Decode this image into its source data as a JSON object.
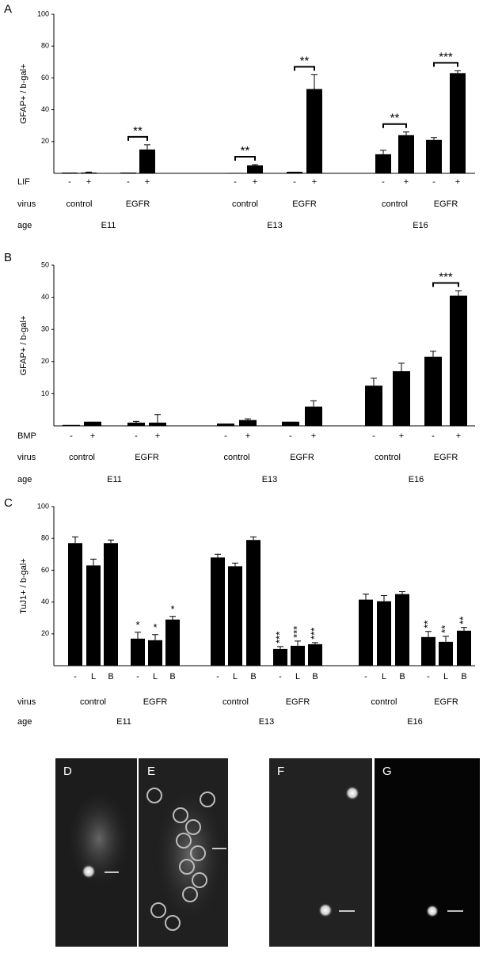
{
  "chart_data": [
    {
      "type": "bar",
      "panel": "A",
      "y_label": "GFAP+ / b-gal+",
      "ylim": [
        0,
        100
      ],
      "yticks": [
        20,
        40,
        60,
        80,
        100
      ],
      "color": "#000000",
      "treatment_label": "LIF",
      "virus_label": "virus",
      "age_label": "age",
      "categories": [
        "-",
        "+",
        "-",
        "+",
        "-",
        "+",
        "-",
        "+",
        "-",
        "+",
        "-",
        "+"
      ],
      "values": [
        0.5,
        0.5,
        0.5,
        15,
        0.3,
        5,
        1,
        53,
        12,
        24,
        21,
        63
      ],
      "errors": [
        0,
        0.3,
        0,
        3,
        0,
        0.5,
        0,
        9,
        2.5,
        2,
        1.5,
        1.5
      ],
      "virus": [
        "control",
        "EGFR",
        "control",
        "EGFR",
        "control",
        "EGFR"
      ],
      "age": [
        "E11",
        "E13",
        "E16"
      ],
      "group_annotations": [
        null,
        "**",
        "**",
        "**",
        "**",
        "***"
      ]
    },
    {
      "type": "bar",
      "panel": "B",
      "y_label": "GFAP+ / b-gal+",
      "ylim": [
        0,
        50
      ],
      "yticks": [
        10,
        20,
        30,
        40,
        50
      ],
      "color": "#000000",
      "treatment_label": "BMP",
      "virus_label": "virus",
      "age_label": "age",
      "categories": [
        "-",
        "+",
        "-",
        "+",
        "-",
        "+",
        "-",
        "+",
        "-",
        "+",
        "-",
        "+"
      ],
      "values": [
        0.3,
        1.3,
        1,
        1,
        0.7,
        1.8,
        1.3,
        6,
        12.5,
        17,
        21.5,
        40.5
      ],
      "errors": [
        0,
        0,
        0.4,
        2.5,
        0,
        0.4,
        0,
        1.8,
        2.3,
        2.5,
        1.7,
        1.5
      ],
      "virus": [
        "control",
        "EGFR",
        "control",
        "EGFR",
        "control",
        "EGFR"
      ],
      "age": [
        "E11",
        "E13",
        "E16"
      ],
      "group_annotations": [
        null,
        null,
        null,
        null,
        null,
        "***"
      ]
    },
    {
      "type": "bar",
      "panel": "C",
      "y_label": "TuJ1+ / b-gal+",
      "ylim": [
        0,
        100
      ],
      "yticks": [
        20,
        40,
        60,
        80,
        100
      ],
      "color": "#000000",
      "virus_label": "virus",
      "age_label": "age",
      "categories": [
        "-",
        "L",
        "B",
        "-",
        "L",
        "B",
        "-",
        "L",
        "B",
        "-",
        "L",
        "B",
        "-",
        "L",
        "B",
        "-",
        "L",
        "B"
      ],
      "values": [
        77,
        63,
        77,
        17,
        16,
        29,
        68,
        62.5,
        79,
        10.5,
        12.5,
        13.5,
        41.5,
        40.5,
        45,
        18,
        15,
        22
      ],
      "errors": [
        4,
        4,
        2,
        4,
        3.5,
        2,
        2,
        2,
        2,
        1.5,
        3,
        1,
        3.5,
        3.5,
        1.5,
        3.5,
        3.5,
        2
      ],
      "virus": [
        "control",
        "EGFR",
        "control",
        "EGFR",
        "control",
        "EGFR"
      ],
      "age": [
        "E11",
        "E13",
        "E16"
      ],
      "bar_annotations": [
        null,
        null,
        null,
        "*",
        "*",
        "*",
        null,
        null,
        null,
        "***",
        "***",
        "***",
        null,
        null,
        null,
        "**",
        "**",
        "**"
      ]
    }
  ],
  "image_panels": [
    "D",
    "E",
    "F",
    "G"
  ]
}
